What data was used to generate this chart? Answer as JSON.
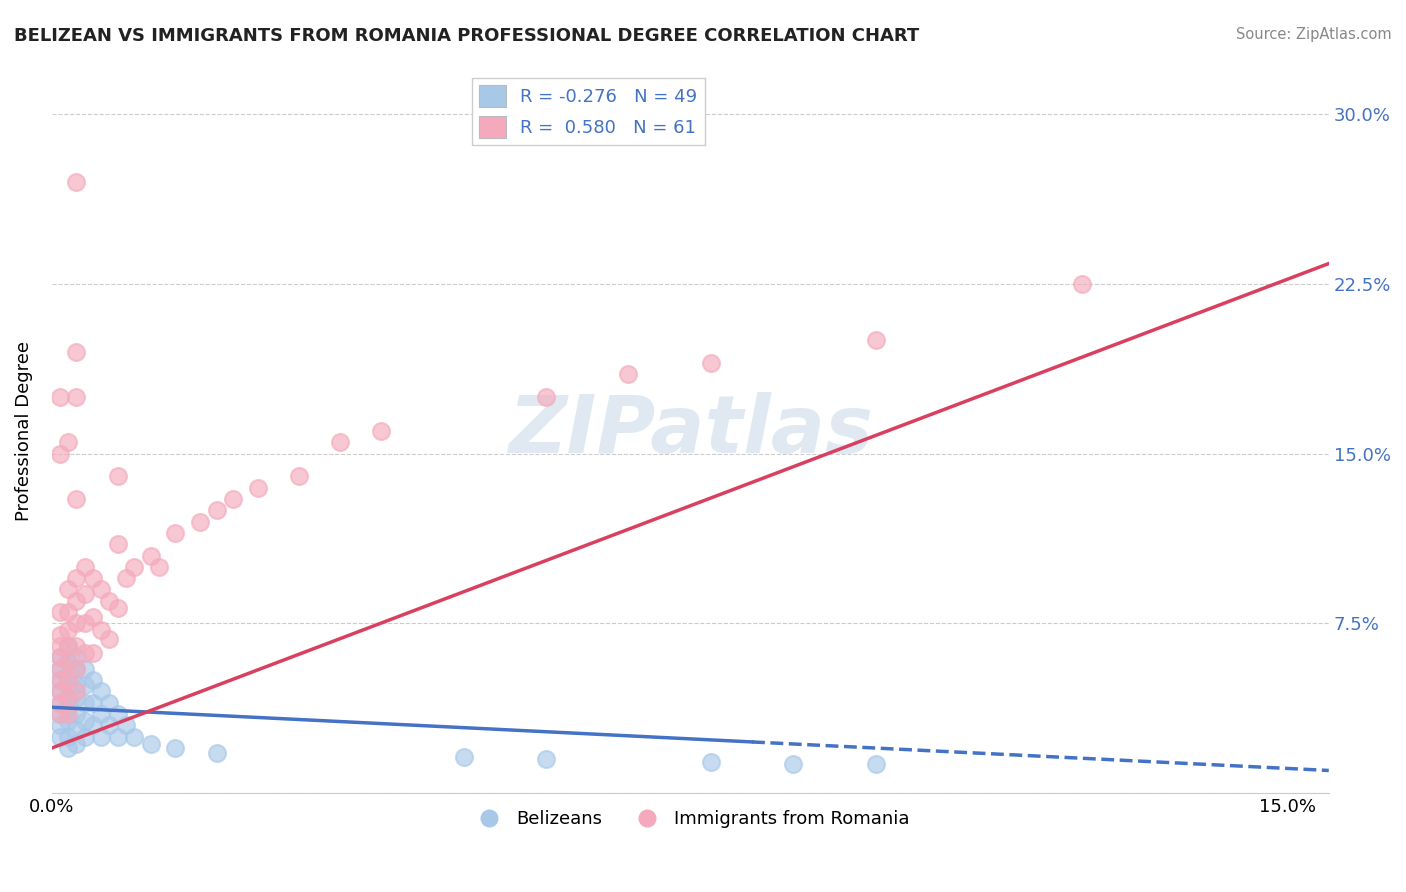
{
  "title": "BELIZEAN VS IMMIGRANTS FROM ROMANIA PROFESSIONAL DEGREE CORRELATION CHART",
  "source": "Source: ZipAtlas.com",
  "ylabel_label": "Professional Degree",
  "xlim": [
    0.0,
    0.155
  ],
  "ylim": [
    0.0,
    0.32
  ],
  "ytick_vals": [
    0.0,
    0.075,
    0.15,
    0.225,
    0.3
  ],
  "ytick_labels": [
    "",
    "7.5%",
    "15.0%",
    "22.5%",
    "30.0%"
  ],
  "xtick_vals": [
    0.0,
    0.15
  ],
  "xtick_labels": [
    "0.0%",
    "15.0%"
  ],
  "blue_color": "#A8C8E8",
  "pink_color": "#F4AABC",
  "blue_line_color": "#4472C4",
  "pink_line_color": "#D94060",
  "grid_color": "#CCCCCC",
  "background_color": "#FFFFFF",
  "blue_line_solid_end": 0.085,
  "blue_intercept": 0.038,
  "blue_slope": -0.18,
  "pink_intercept": 0.02,
  "pink_slope": 1.38,
  "blue_scatter": [
    [
      0.001,
      0.06
    ],
    [
      0.001,
      0.055
    ],
    [
      0.001,
      0.05
    ],
    [
      0.001,
      0.045
    ],
    [
      0.001,
      0.04
    ],
    [
      0.001,
      0.035
    ],
    [
      0.001,
      0.03
    ],
    [
      0.001,
      0.025
    ],
    [
      0.002,
      0.065
    ],
    [
      0.002,
      0.058
    ],
    [
      0.002,
      0.052
    ],
    [
      0.002,
      0.048
    ],
    [
      0.002,
      0.042
    ],
    [
      0.002,
      0.038
    ],
    [
      0.002,
      0.032
    ],
    [
      0.002,
      0.025
    ],
    [
      0.002,
      0.02
    ],
    [
      0.003,
      0.06
    ],
    [
      0.003,
      0.055
    ],
    [
      0.003,
      0.048
    ],
    [
      0.003,
      0.042
    ],
    [
      0.003,
      0.035
    ],
    [
      0.003,
      0.028
    ],
    [
      0.003,
      0.022
    ],
    [
      0.004,
      0.055
    ],
    [
      0.004,
      0.048
    ],
    [
      0.004,
      0.04
    ],
    [
      0.004,
      0.032
    ],
    [
      0.004,
      0.025
    ],
    [
      0.005,
      0.05
    ],
    [
      0.005,
      0.04
    ],
    [
      0.005,
      0.03
    ],
    [
      0.006,
      0.045
    ],
    [
      0.006,
      0.035
    ],
    [
      0.006,
      0.025
    ],
    [
      0.007,
      0.04
    ],
    [
      0.007,
      0.03
    ],
    [
      0.008,
      0.035
    ],
    [
      0.008,
      0.025
    ],
    [
      0.009,
      0.03
    ],
    [
      0.01,
      0.025
    ],
    [
      0.012,
      0.022
    ],
    [
      0.015,
      0.02
    ],
    [
      0.02,
      0.018
    ],
    [
      0.05,
      0.016
    ],
    [
      0.06,
      0.015
    ],
    [
      0.08,
      0.014
    ],
    [
      0.09,
      0.013
    ],
    [
      0.1,
      0.013
    ]
  ],
  "pink_scatter": [
    [
      0.001,
      0.08
    ],
    [
      0.001,
      0.07
    ],
    [
      0.001,
      0.065
    ],
    [
      0.001,
      0.06
    ],
    [
      0.001,
      0.055
    ],
    [
      0.001,
      0.05
    ],
    [
      0.001,
      0.045
    ],
    [
      0.001,
      0.04
    ],
    [
      0.001,
      0.035
    ],
    [
      0.002,
      0.09
    ],
    [
      0.002,
      0.08
    ],
    [
      0.002,
      0.072
    ],
    [
      0.002,
      0.065
    ],
    [
      0.002,
      0.058
    ],
    [
      0.002,
      0.05
    ],
    [
      0.002,
      0.042
    ],
    [
      0.002,
      0.035
    ],
    [
      0.003,
      0.095
    ],
    [
      0.003,
      0.085
    ],
    [
      0.003,
      0.075
    ],
    [
      0.003,
      0.065
    ],
    [
      0.003,
      0.055
    ],
    [
      0.003,
      0.045
    ],
    [
      0.004,
      0.1
    ],
    [
      0.004,
      0.088
    ],
    [
      0.004,
      0.075
    ],
    [
      0.004,
      0.062
    ],
    [
      0.005,
      0.095
    ],
    [
      0.005,
      0.078
    ],
    [
      0.005,
      0.062
    ],
    [
      0.006,
      0.09
    ],
    [
      0.006,
      0.072
    ],
    [
      0.007,
      0.085
    ],
    [
      0.007,
      0.068
    ],
    [
      0.008,
      0.11
    ],
    [
      0.008,
      0.082
    ],
    [
      0.009,
      0.095
    ],
    [
      0.01,
      0.1
    ],
    [
      0.012,
      0.105
    ],
    [
      0.013,
      0.1
    ],
    [
      0.015,
      0.115
    ],
    [
      0.018,
      0.12
    ],
    [
      0.02,
      0.125
    ],
    [
      0.022,
      0.13
    ],
    [
      0.025,
      0.135
    ],
    [
      0.03,
      0.14
    ],
    [
      0.035,
      0.155
    ],
    [
      0.04,
      0.16
    ],
    [
      0.002,
      0.155
    ],
    [
      0.001,
      0.15
    ],
    [
      0.003,
      0.175
    ],
    [
      0.003,
      0.195
    ],
    [
      0.001,
      0.175
    ],
    [
      0.008,
      0.14
    ],
    [
      0.06,
      0.175
    ],
    [
      0.07,
      0.185
    ],
    [
      0.08,
      0.19
    ],
    [
      0.1,
      0.2
    ],
    [
      0.125,
      0.225
    ],
    [
      0.003,
      0.27
    ],
    [
      0.003,
      0.13
    ]
  ]
}
